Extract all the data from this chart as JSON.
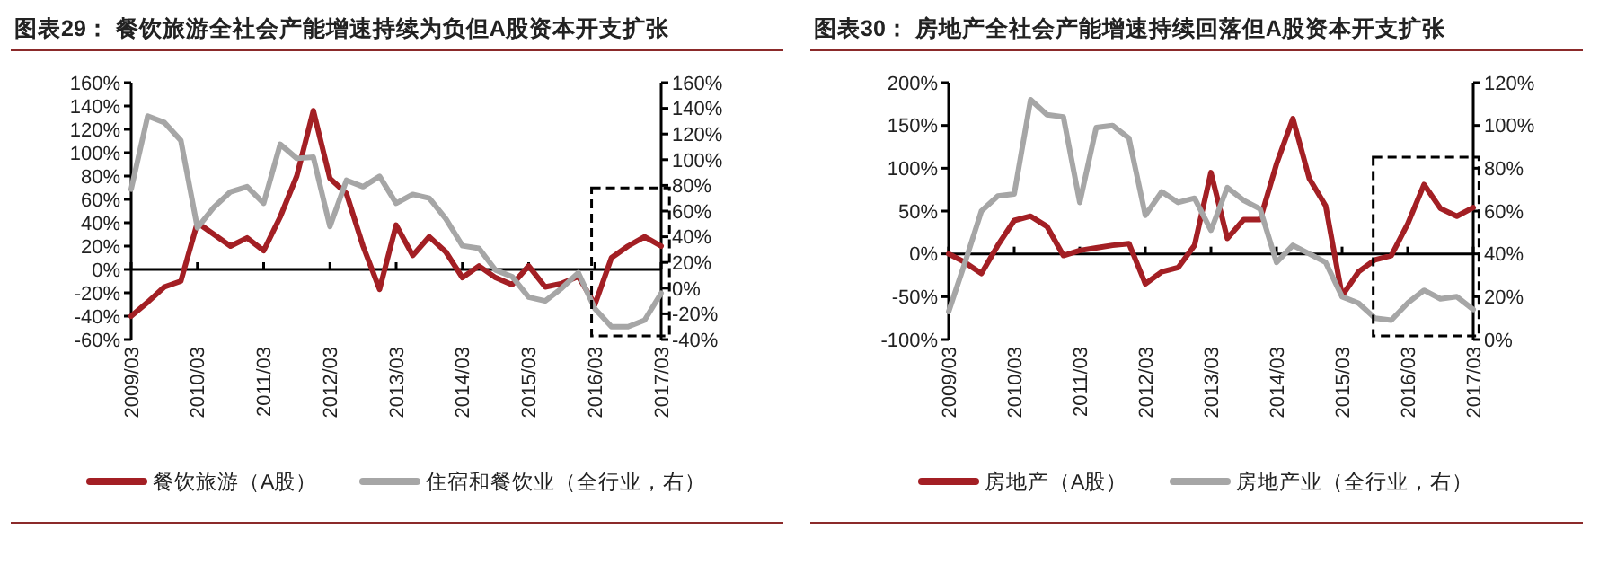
{
  "chart_data": [
    {
      "type": "line",
      "title": "图表29：  餐饮旅游全社会产能增速持续为负但A股资本开支扩张",
      "legend": "bottom",
      "categories": [
        "2009/03",
        null,
        null,
        null,
        "2010/03",
        null,
        null,
        null,
        "2011/03",
        null,
        null,
        null,
        "2012/03",
        null,
        null,
        null,
        "2013/03",
        null,
        null,
        null,
        "2014/03",
        null,
        null,
        null,
        "2015/03",
        null,
        null,
        null,
        "2016/03",
        null,
        null,
        null,
        "2017/03"
      ],
      "ylim": [
        -60,
        160
      ],
      "yticks": [
        {
          "value": -60,
          "label": "-60%"
        },
        {
          "value": -40,
          "label": "-40%"
        },
        {
          "value": -20,
          "label": "-20%"
        },
        {
          "value": 0,
          "label": "0%"
        },
        {
          "value": 20,
          "label": "20%"
        },
        {
          "value": 40,
          "label": "40%"
        },
        {
          "value": 60,
          "label": "60%"
        },
        {
          "value": 80,
          "label": "80%"
        },
        {
          "value": 100,
          "label": "100%"
        },
        {
          "value": 120,
          "label": "120%"
        },
        {
          "value": 140,
          "label": "140%"
        },
        {
          "value": 160,
          "label": "160%"
        }
      ],
      "y2lim": [
        -40,
        160
      ],
      "y2ticks": [
        {
          "value": -40,
          "label": "-40%"
        },
        {
          "value": -20,
          "label": "-20%"
        },
        {
          "value": 0,
          "label": "0%"
        },
        {
          "value": 20,
          "label": "20%"
        },
        {
          "value": 40,
          "label": "40%"
        },
        {
          "value": 60,
          "label": "60%"
        },
        {
          "value": 80,
          "label": "80%"
        },
        {
          "value": 100,
          "label": "100%"
        },
        {
          "value": 120,
          "label": "120%"
        },
        {
          "value": 140,
          "label": "140%"
        },
        {
          "value": 160,
          "label": "160%"
        }
      ],
      "series": [
        {
          "name": "餐饮旅游（A股）",
          "color": "#a31f24",
          "values": [
            -40,
            -28,
            -15,
            -10,
            40,
            30,
            20,
            27,
            16,
            45,
            80,
            136,
            78,
            65,
            20,
            -17,
            38,
            12,
            28,
            15,
            -7,
            3,
            -7,
            -13,
            3,
            -15,
            -12,
            -6,
            -30,
            10,
            20,
            28,
            20
          ]
        },
        {
          "name": "住宿和餐饮业（全行业，右）",
          "color": "#a6a6a6",
          "axis": "y2",
          "values": [
            77,
            134,
            129,
            115,
            47,
            63,
            75,
            79,
            66,
            112,
            101,
            102,
            48,
            84,
            79,
            87,
            66,
            73,
            70,
            54,
            33,
            31,
            14,
            9,
            -7,
            -10,
            0,
            12,
            -16,
            -30,
            -30,
            -25,
            -4
          ]
        }
      ]
    },
    {
      "type": "line",
      "title": "图表30：  房地产全社会产能增速持续回落但A股资本开支扩张",
      "legend": "bottom",
      "categories": [
        "2009/03",
        null,
        null,
        null,
        "2010/03",
        null,
        null,
        null,
        "2011/03",
        null,
        null,
        null,
        "2012/03",
        null,
        null,
        null,
        "2013/03",
        null,
        null,
        null,
        "2014/03",
        null,
        null,
        null,
        "2015/03",
        null,
        null,
        null,
        "2016/03",
        null,
        null,
        null,
        "2017/03"
      ],
      "ylim": [
        -100,
        200
      ],
      "yticks": [
        {
          "value": -100,
          "label": "-100%"
        },
        {
          "value": -50,
          "label": "-50%"
        },
        {
          "value": 0,
          "label": "0%"
        },
        {
          "value": 50,
          "label": "50%"
        },
        {
          "value": 100,
          "label": "100%"
        },
        {
          "value": 150,
          "label": "150%"
        },
        {
          "value": 200,
          "label": "200%"
        }
      ],
      "y2lim": [
        0,
        120
      ],
      "y2ticks": [
        {
          "value": 0,
          "label": "0%"
        },
        {
          "value": 20,
          "label": "20%"
        },
        {
          "value": 40,
          "label": "40%"
        },
        {
          "value": 60,
          "label": "60%"
        },
        {
          "value": 80,
          "label": "80%"
        },
        {
          "value": 100,
          "label": "100%"
        },
        {
          "value": 120,
          "label": "120%"
        }
      ],
      "series": [
        {
          "name": "房地产（A股）",
          "color": "#a31f24",
          "values": [
            0,
            -10,
            -23,
            10,
            39,
            44,
            32,
            -2,
            4,
            7,
            10,
            12,
            -35,
            -21,
            -16,
            10,
            95,
            18,
            40,
            40,
            105,
            158,
            88,
            56,
            -49,
            -21,
            -7,
            -2,
            35,
            81,
            53,
            44,
            54
          ]
        },
        {
          "name": "房地产业（全行业，右）",
          "color": "#a6a6a6",
          "axis": "y2",
          "values": [
            13,
            36,
            60,
            67,
            68,
            112,
            105,
            104,
            64,
            99,
            100,
            94,
            58,
            69,
            64,
            66,
            51,
            71,
            65,
            61,
            36,
            44,
            40,
            36,
            20,
            17,
            10,
            9,
            17,
            23,
            19,
            20,
            14
          ]
        }
      ]
    }
  ]
}
